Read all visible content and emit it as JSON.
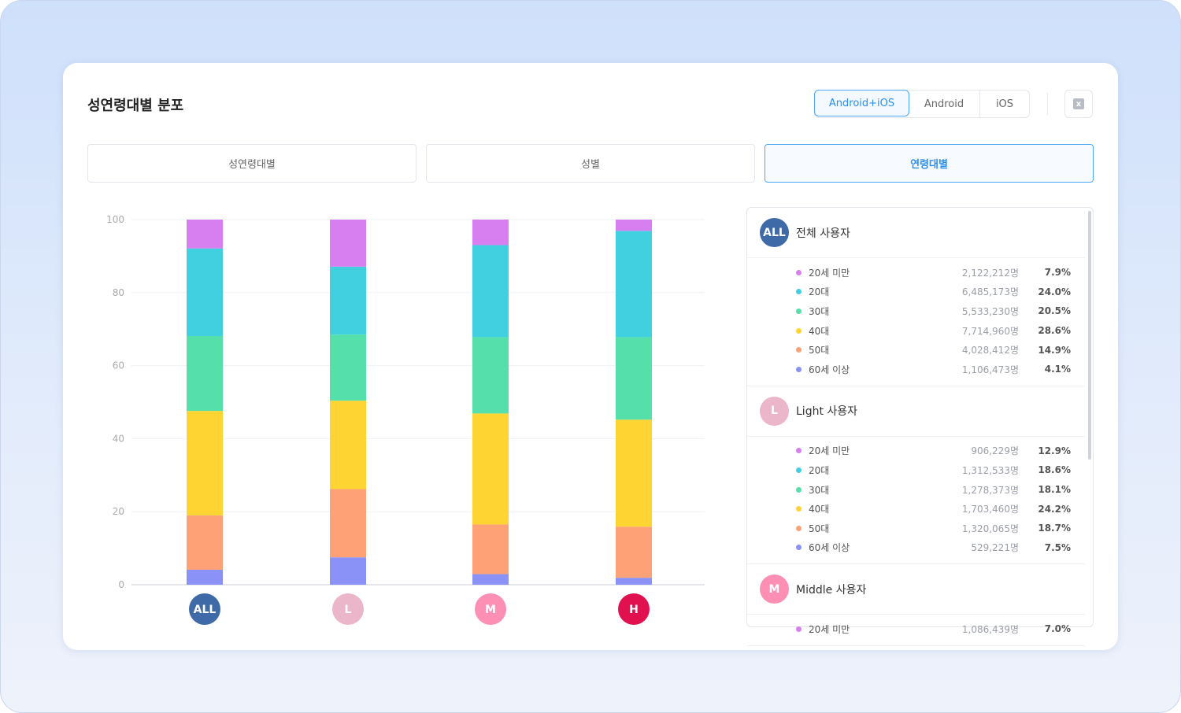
{
  "title": "성연령대별 분포",
  "platform": {
    "options": [
      "Android+iOS",
      "Android",
      "iOS"
    ],
    "selected": "Android+iOS"
  },
  "export_icon": "excel-download-icon",
  "tabs": [
    "성연령대별",
    "성별",
    "연령대별"
  ],
  "active_tab": "연령대별",
  "colors": {
    "accent": "#2a8ff0",
    "20세 미만": "#d77ff0",
    "20대": "#40d0e0",
    "30대": "#55e0ab",
    "40대": "#fed433",
    "50대": "#ffa176",
    "60세 이상": "#8a92f7"
  },
  "chart_data": {
    "type": "bar",
    "stacked": true,
    "categories": [
      "ALL",
      "L",
      "M",
      "H"
    ],
    "category_colors": [
      "#3f6aa8",
      "#ebb6c9",
      "#fc8fb3",
      "#e0114e"
    ],
    "ylim": [
      0,
      100
    ],
    "yticks": [
      0,
      20,
      40,
      60,
      80,
      100
    ],
    "grid": true,
    "series": [
      {
        "name": "60세 이상",
        "values": [
          4.1,
          7.5,
          2.9,
          1.9
        ]
      },
      {
        "name": "50대",
        "values": [
          14.9,
          18.7,
          13.6,
          14.0
        ]
      },
      {
        "name": "40대",
        "values": [
          28.6,
          24.2,
          30.4,
          29.3
        ]
      },
      {
        "name": "30대",
        "values": [
          20.5,
          18.1,
          20.9,
          22.6
        ]
      },
      {
        "name": "20대",
        "values": [
          24.0,
          18.6,
          25.2,
          29.1
        ]
      },
      {
        "name": "20세 미만",
        "values": [
          7.9,
          12.9,
          7.0,
          3.1
        ]
      }
    ]
  },
  "groups": [
    {
      "badge": "ALL",
      "color": "#3f6aa8",
      "name": "전체 사용자",
      "rows": [
        {
          "label": "20세 미만",
          "count": "2,122,212명",
          "pct": "7.9%"
        },
        {
          "label": "20대",
          "count": "6,485,173명",
          "pct": "24.0%"
        },
        {
          "label": "30대",
          "count": "5,533,230명",
          "pct": "20.5%"
        },
        {
          "label": "40대",
          "count": "7,714,960명",
          "pct": "28.6%"
        },
        {
          "label": "50대",
          "count": "4,028,412명",
          "pct": "14.9%"
        },
        {
          "label": "60세 이상",
          "count": "1,106,473명",
          "pct": "4.1%"
        }
      ]
    },
    {
      "badge": "L",
      "color": "#ebb6c9",
      "name": "Light 사용자",
      "rows": [
        {
          "label": "20세 미만",
          "count": "906,229명",
          "pct": "12.9%"
        },
        {
          "label": "20대",
          "count": "1,312,533명",
          "pct": "18.6%"
        },
        {
          "label": "30대",
          "count": "1,278,373명",
          "pct": "18.1%"
        },
        {
          "label": "40대",
          "count": "1,703,460명",
          "pct": "24.2%"
        },
        {
          "label": "50대",
          "count": "1,320,065명",
          "pct": "18.7%"
        },
        {
          "label": "60세 이상",
          "count": "529,221명",
          "pct": "7.5%"
        }
      ]
    },
    {
      "badge": "M",
      "color": "#fc8fb3",
      "name": "Middle 사용자",
      "rows": [
        {
          "label": "20세 미만",
          "count": "1,086,439명",
          "pct": "7.0%"
        }
      ]
    }
  ]
}
